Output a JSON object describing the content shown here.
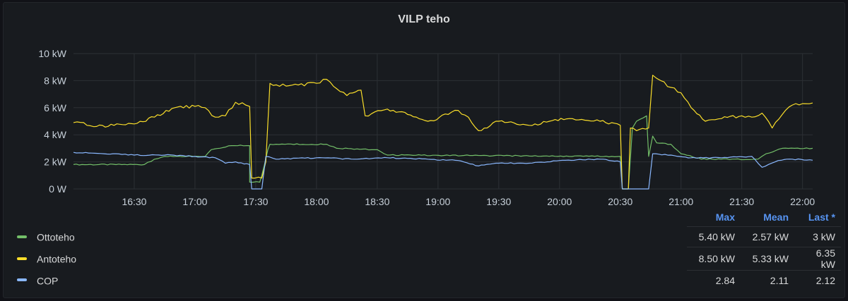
{
  "panel": {
    "title": "VILP teho"
  },
  "chart_data": {
    "type": "line",
    "title": "VILP teho",
    "y_unit": "kW",
    "ylim": [
      0,
      10
    ],
    "y_ticks": [
      {
        "value": 0,
        "label": "0 W"
      },
      {
        "value": 2,
        "label": "2 kW"
      },
      {
        "value": 4,
        "label": "4 kW"
      },
      {
        "value": 6,
        "label": "6 kW"
      },
      {
        "value": 8,
        "label": "8 kW"
      },
      {
        "value": 10,
        "label": "10 kW"
      }
    ],
    "xlim": [
      "16:00",
      "22:05"
    ],
    "x_ticks": [
      "16:30",
      "17:00",
      "17:30",
      "18:00",
      "18:30",
      "19:00",
      "19:30",
      "20:00",
      "20:30",
      "21:00",
      "21:30",
      "22:00"
    ],
    "grid": true,
    "legend": "bottom-table",
    "series": [
      {
        "name": "Ottoteho",
        "color": "#73bf69",
        "points": [
          [
            "16:00",
            1.8
          ],
          [
            "16:35",
            1.8
          ],
          [
            "16:40",
            2.2
          ],
          [
            "16:45",
            2.4
          ],
          [
            "17:05",
            2.4
          ],
          [
            "17:08",
            2.9
          ],
          [
            "17:18",
            3.2
          ],
          [
            "17:27",
            3.2
          ],
          [
            "17:27",
            0.5
          ],
          [
            "17:32",
            0.5
          ],
          [
            "17:33",
            1.0
          ],
          [
            "17:36",
            2.9
          ],
          [
            "17:37",
            3.3
          ],
          [
            "17:40",
            3.3
          ],
          [
            "18:05",
            3.3
          ],
          [
            "18:10",
            3.0
          ],
          [
            "18:30",
            2.9
          ],
          [
            "18:35",
            2.5
          ],
          [
            "20:30",
            2.4
          ],
          [
            "20:31",
            0.0
          ],
          [
            "20:34",
            0.0
          ],
          [
            "20:36",
            4.5
          ],
          [
            "20:38",
            5.0
          ],
          [
            "20:43",
            5.4
          ],
          [
            "20:44",
            2.4
          ],
          [
            "20:46",
            3.9
          ],
          [
            "20:48",
            3.4
          ],
          [
            "20:55",
            3.3
          ],
          [
            "21:00",
            2.6
          ],
          [
            "21:10",
            2.2
          ],
          [
            "21:38",
            2.2
          ],
          [
            "21:42",
            2.6
          ],
          [
            "21:50",
            3.0
          ],
          [
            "22:05",
            3.0
          ]
        ]
      },
      {
        "name": "Antoteho",
        "color": "#fade2a",
        "points": [
          [
            "16:00",
            4.9
          ],
          [
            "16:05",
            4.9
          ],
          [
            "16:10",
            4.6
          ],
          [
            "16:20",
            4.7
          ],
          [
            "16:30",
            4.8
          ],
          [
            "16:40",
            5.3
          ],
          [
            "16:50",
            6.0
          ],
          [
            "17:00",
            6.1
          ],
          [
            "17:05",
            6.0
          ],
          [
            "17:10",
            5.3
          ],
          [
            "17:15",
            5.4
          ],
          [
            "17:20",
            6.4
          ],
          [
            "17:25",
            6.2
          ],
          [
            "17:27",
            6.1
          ],
          [
            "17:28",
            0.8
          ],
          [
            "17:33",
            0.8
          ],
          [
            "17:35",
            2.0
          ],
          [
            "17:37",
            7.8
          ],
          [
            "17:45",
            7.6
          ],
          [
            "18:00",
            7.8
          ],
          [
            "18:05",
            8.1
          ],
          [
            "18:10",
            7.4
          ],
          [
            "18:15",
            6.9
          ],
          [
            "18:22",
            7.3
          ],
          [
            "18:24",
            5.4
          ],
          [
            "18:35",
            5.9
          ],
          [
            "18:45",
            5.5
          ],
          [
            "18:55",
            5.0
          ],
          [
            "19:05",
            5.5
          ],
          [
            "19:10",
            5.8
          ],
          [
            "19:15",
            5.3
          ],
          [
            "19:20",
            4.3
          ],
          [
            "19:30",
            5.0
          ],
          [
            "19:45",
            4.7
          ],
          [
            "19:55",
            5.0
          ],
          [
            "20:05",
            5.2
          ],
          [
            "20:20",
            5.0
          ],
          [
            "20:30",
            4.7
          ],
          [
            "20:31",
            0.0
          ],
          [
            "20:34",
            0.0
          ],
          [
            "20:35",
            4.5
          ],
          [
            "20:38",
            4.3
          ],
          [
            "20:44",
            4.5
          ],
          [
            "20:46",
            8.4
          ],
          [
            "20:50",
            8.0
          ],
          [
            "20:55",
            7.5
          ],
          [
            "21:00",
            7.1
          ],
          [
            "21:05",
            6.0
          ],
          [
            "21:12",
            5.0
          ],
          [
            "21:20",
            5.2
          ],
          [
            "21:30",
            5.4
          ],
          [
            "21:35",
            5.3
          ],
          [
            "21:40",
            5.6
          ],
          [
            "21:45",
            4.5
          ],
          [
            "21:50",
            5.5
          ],
          [
            "21:55",
            6.2
          ],
          [
            "22:00",
            6.3
          ],
          [
            "22:05",
            6.35
          ]
        ]
      },
      {
        "name": "COP",
        "color": "#8ab8ff",
        "points": [
          [
            "16:00",
            2.7
          ],
          [
            "16:15",
            2.6
          ],
          [
            "16:30",
            2.5
          ],
          [
            "16:45",
            2.5
          ],
          [
            "17:00",
            2.4
          ],
          [
            "17:10",
            2.3
          ],
          [
            "17:15",
            1.9
          ],
          [
            "17:20",
            2.0
          ],
          [
            "17:27",
            1.8
          ],
          [
            "17:28",
            0.0
          ],
          [
            "17:33",
            0.0
          ],
          [
            "17:35",
            2.4
          ],
          [
            "17:40",
            2.2
          ],
          [
            "18:00",
            2.3
          ],
          [
            "18:20",
            2.2
          ],
          [
            "18:35",
            2.3
          ],
          [
            "18:55",
            2.2
          ],
          [
            "19:10",
            2.1
          ],
          [
            "19:20",
            1.7
          ],
          [
            "19:30",
            1.9
          ],
          [
            "19:45",
            1.9
          ],
          [
            "20:00",
            2.1
          ],
          [
            "20:20",
            2.2
          ],
          [
            "20:30",
            2.0
          ],
          [
            "20:31",
            0.0
          ],
          [
            "20:44",
            0.0
          ],
          [
            "20:46",
            2.6
          ],
          [
            "20:55",
            2.5
          ],
          [
            "21:05",
            2.3
          ],
          [
            "21:20",
            2.3
          ],
          [
            "21:35",
            2.4
          ],
          [
            "21:40",
            1.6
          ],
          [
            "21:48",
            2.1
          ],
          [
            "21:55",
            2.2
          ],
          [
            "22:05",
            2.12
          ]
        ]
      }
    ]
  },
  "legend": {
    "headers": [
      "Max",
      "Mean",
      "Last *"
    ],
    "rows": [
      {
        "name": "Ottoteho",
        "color": "#73bf69",
        "max": "5.40 kW",
        "mean": "2.57 kW",
        "last": "3 kW"
      },
      {
        "name": "Antoteho",
        "color": "#fade2a",
        "max": "8.50 kW",
        "mean": "5.33 kW",
        "last": "6.35 kW"
      },
      {
        "name": "COP",
        "color": "#8ab8ff",
        "max": "2.84",
        "mean": "2.11",
        "last": "2.12"
      }
    ]
  }
}
